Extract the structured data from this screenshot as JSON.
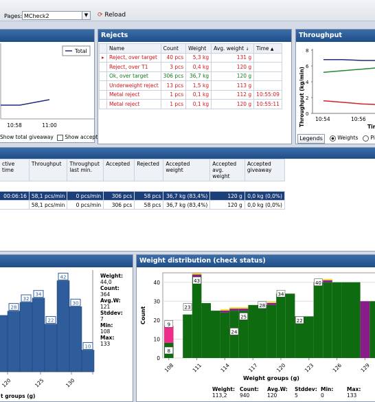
{
  "toolbar": {
    "pages_label": "Pages:",
    "page_value": "MCheck2",
    "reload_label": "Reload"
  },
  "giveaway_panel": {
    "legend": "Total",
    "x_ticks": [
      "10:58",
      "11:00"
    ],
    "show_total_label": "Show total giveaway",
    "show_accepted_label": "Show accepte"
  },
  "rejects": {
    "title": "Rejects",
    "columns": [
      "Name",
      "Count",
      "Weight",
      "Avg. weight",
      "Time"
    ],
    "rows": [
      {
        "name": "Reject, over target",
        "count": "40 pcs",
        "weight": "5,3 kg",
        "avg": "131 g",
        "time": "",
        "color": "red"
      },
      {
        "name": "Reject, over T1",
        "count": "3 pcs",
        "weight": "0,4 kg",
        "avg": "120 g",
        "time": "",
        "color": "red"
      },
      {
        "name": "Ok, over target",
        "count": "306 pcs",
        "weight": "36,7 kg",
        "avg": "120 g",
        "time": "",
        "color": "green"
      },
      {
        "name": "Underweight reject",
        "count": "13 pcs",
        "weight": "1,5 kg",
        "avg": "113 g",
        "time": "",
        "color": "red"
      },
      {
        "name": "Metal reject",
        "count": "1 pcs",
        "weight": "0,1 kg",
        "avg": "112 g",
        "time": "10:55:09",
        "color": "red"
      },
      {
        "name": "Metal reject",
        "count": "1 pcs",
        "weight": "0,1 kg",
        "avg": "120 g",
        "time": "10:55:11",
        "color": "red"
      }
    ]
  },
  "throughput": {
    "title": "Throughput",
    "ylabel": "Throughput (kg/min)",
    "y_ticks": [
      "8",
      "6",
      "4",
      "2",
      "0"
    ],
    "x_ticks": [
      "10:54",
      "10:56"
    ],
    "x_cut": "Tim",
    "legends_button": "Legends",
    "weights_label": "Weights",
    "pieces_label": "Pi"
  },
  "grid": {
    "columns": [
      "ctive time",
      "Throughput",
      "Throughput last min.",
      "Accepted",
      "Rejected",
      "Accepted weight",
      "Accepted avg. weight",
      "Accepted giveaway"
    ],
    "rows": [
      [
        "00:06:16",
        "58,1 pcs/min",
        "0 pcs/min",
        "306 pcs",
        "58 pcs",
        "36,7 kg (83,4%)",
        "120 g",
        "0,0 kg (0,0%)"
      ],
      [
        "",
        "58,1 pcs/min",
        "0 pcs/min",
        "306 pcs",
        "58 pcs",
        "36,7 kg (83,4%)",
        "120 g",
        "0,0 kg (0,0%)"
      ]
    ]
  },
  "hist_left": {
    "labels": [
      "28",
      "32",
      "34",
      "22",
      "42",
      "30",
      "10"
    ],
    "x_ticks": [
      "120",
      "125",
      "130"
    ],
    "xlabel": "t groups (g)",
    "stats": [
      {
        "k": "Weight:",
        "v": "44,0"
      },
      {
        "k": "Count:",
        "v": "364"
      },
      {
        "k": "Avg.W:",
        "v": "121"
      },
      {
        "k": "Stddev:",
        "v": "7"
      },
      {
        "k": "Min:",
        "v": "108"
      },
      {
        "k": "Max:",
        "v": "133"
      }
    ]
  },
  "weight_dist": {
    "title": "Weight distribution (check status)",
    "ylabel": "Count",
    "xlabel": "Weight groups (g)",
    "y_ticks": [
      "40",
      "30",
      "20",
      "10",
      "0"
    ],
    "x_ticks": [
      "108",
      "111",
      "114",
      "117",
      "120",
      "123",
      "126",
      "129"
    ],
    "stats_headers": [
      "Weight:",
      "Count:",
      "Avg.W:",
      "Stddev:",
      "Min:",
      "Max:"
    ],
    "stats_values": [
      "113,2",
      "940",
      "120",
      "5",
      "0",
      "133"
    ]
  },
  "chart_data": [
    {
      "type": "bar",
      "title": "Weight distribution (check status)",
      "xlabel": "Weight groups (g)",
      "ylabel": "Count",
      "ylim": [
        0,
        45
      ],
      "categories": [
        "108",
        "109",
        "110",
        "111",
        "112",
        "113",
        "114",
        "115",
        "116",
        "117",
        "118",
        "119",
        "120",
        "121",
        "122",
        "123",
        "124",
        "125",
        "126",
        "127",
        "128",
        "129",
        "130"
      ],
      "series": [
        {
          "values": [
            8,
            0,
            23,
            43,
            29,
            25,
            24,
            25,
            25,
            28,
            28,
            28,
            34,
            34,
            22,
            22,
            40,
            40,
            40,
            40,
            40,
            40,
            30
          ]
        },
        {
          "values": [
            9,
            0,
            0,
            0,
            0,
            0,
            0,
            0,
            0,
            0,
            0,
            0,
            0,
            0,
            0,
            0,
            0,
            0,
            0,
            0,
            0,
            0,
            0
          ]
        },
        {
          "values": [
            0,
            0,
            0,
            1,
            0,
            0,
            1,
            1,
            1,
            0,
            0,
            1,
            0,
            0,
            0,
            0,
            0,
            1,
            0,
            0,
            0,
            0,
            0
          ]
        }
      ],
      "data_labels": [
        "8",
        "9",
        "23",
        "43",
        "24",
        "25",
        "28",
        "34",
        "22",
        "40"
      ]
    },
    {
      "type": "bar",
      "xlabel": "t groups (g)",
      "x_tick_labels": [
        "120",
        "125",
        "130"
      ],
      "values": [
        28,
        32,
        34,
        22,
        42,
        30,
        10
      ],
      "ylim": [
        0,
        45
      ]
    },
    {
      "type": "line",
      "title": "Throughput",
      "ylabel": "Throughput (kg/min)",
      "ylim": [
        0,
        8
      ],
      "x_tick_labels": [
        "10:54",
        "10:56"
      ],
      "series": [
        {
          "color": "#1f2a7a",
          "values": [
            6.8,
            6.8,
            6.7,
            6.7
          ]
        },
        {
          "color": "#1f8a2b",
          "values": [
            5.2,
            5.4,
            5.6,
            5.8
          ]
        },
        {
          "color": "#d42020",
          "values": [
            1.6,
            1.4,
            1.2,
            1.1
          ]
        }
      ]
    }
  ],
  "colors": {
    "title_bar": "#2a5b97",
    "bar_green": "#0f6b10",
    "bar_pink": "#ee2d8b",
    "bar_purple": "#8a1c8a",
    "bar_blue": "#2f5d9b"
  }
}
